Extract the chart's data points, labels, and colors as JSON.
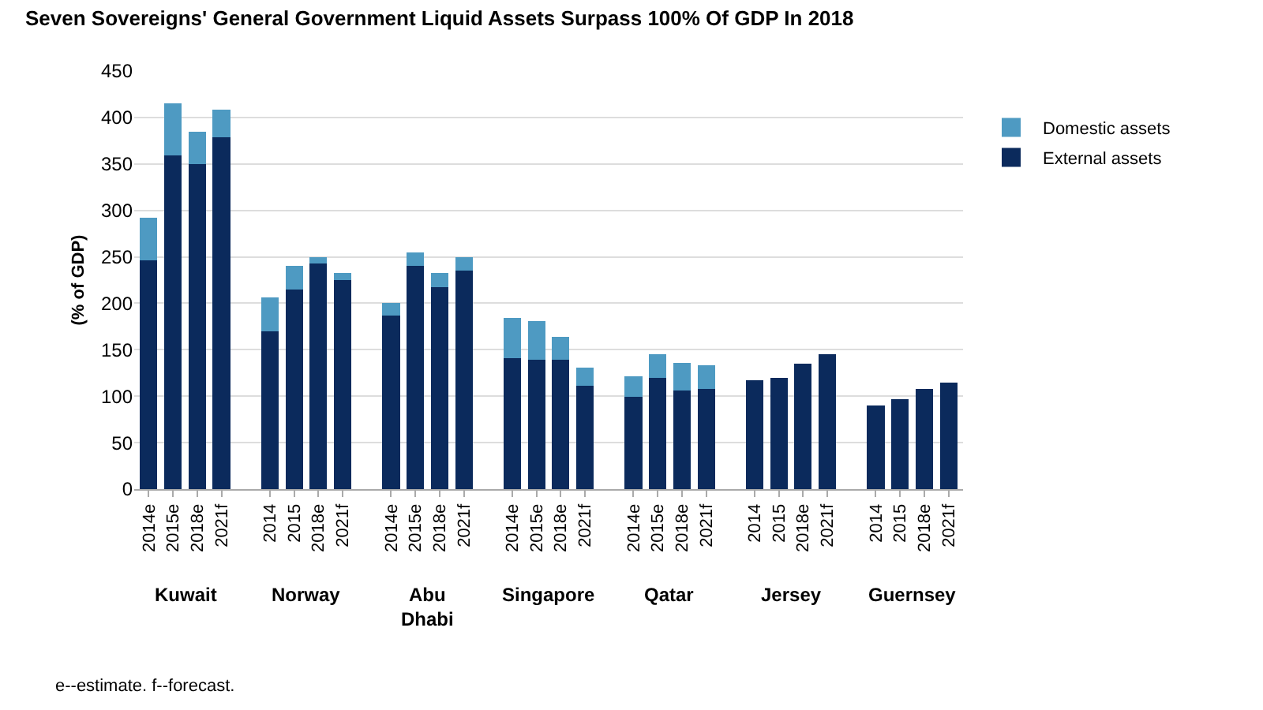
{
  "chart_data": {
    "type": "bar",
    "title": "Seven Sovereigns' General Government Liquid Assets Surpass 100% Of GDP In 2018",
    "ylabel": "(% of GDP)",
    "categories": [
      "2014e",
      "2015e",
      "2018e",
      "2021f",
      "2014",
      "2015",
      "2018e",
      "2021f",
      "2014e",
      "2015e",
      "2018e",
      "2021f",
      "2014e",
      "2015e",
      "2018e",
      "2021f",
      "2014e",
      "2015e",
      "2018e",
      "2021f",
      "2014",
      "2015",
      "2018e",
      "2021f",
      "2014",
      "2015",
      "2018e",
      "2021f"
    ],
    "stacked": true,
    "series": [
      {
        "name": "External assets",
        "color": "#0b2a5c",
        "values": [
          246,
          359,
          350,
          379,
          170,
          215,
          243,
          225,
          187,
          240,
          217,
          235,
          141,
          139,
          139,
          111,
          99,
          120,
          106,
          108,
          117,
          120,
          135,
          145,
          90,
          97,
          108,
          115
        ]
      },
      {
        "name": "Domestic assets",
        "color": "#4e9ac2",
        "values": [
          46,
          56,
          35,
          29,
          36,
          25,
          7,
          8,
          13,
          15,
          16,
          15,
          43,
          42,
          25,
          20,
          22,
          25,
          30,
          25,
          0,
          0,
          0,
          0,
          0,
          0,
          0,
          0
        ]
      }
    ],
    "ylim": [
      0,
      450
    ],
    "yticks": [
      0,
      50,
      100,
      150,
      200,
      250,
      300,
      350,
      400,
      450
    ],
    "grid": "y",
    "legend": "top right",
    "annotations": [
      "Kuwait",
      "Norway",
      "Abu Dhabi",
      "Singapore",
      "Qatar",
      "Jersey",
      "Guernsey",
      "e--estimate. f--forecast."
    ]
  }
}
